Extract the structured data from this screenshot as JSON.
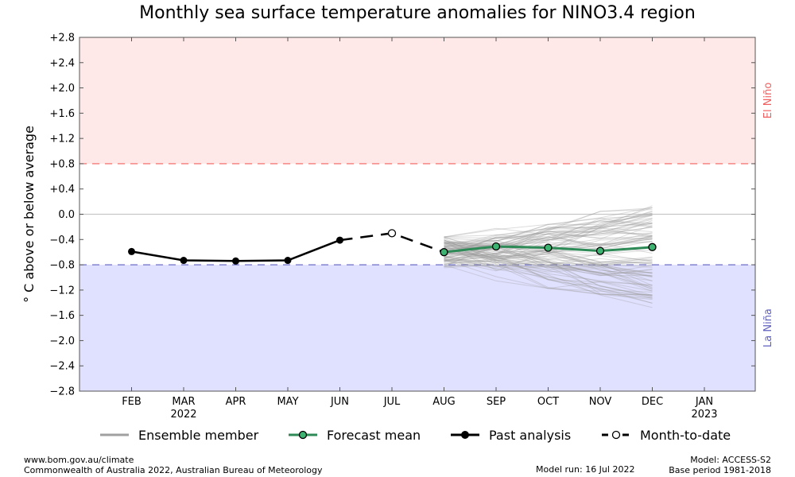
{
  "title": "Monthly sea surface temperature anomalies for NINO3.4 region",
  "footer": {
    "url": "www.bom.gov.au/climate",
    "copyright": "Commonwealth of Australia 2022, Australian Bureau of Meteorology",
    "model_run": "Model run: 16 Jul 2022",
    "model": "Model: ACCESS-S2",
    "base_period": "Base period 1981-2018"
  },
  "legend": [
    {
      "label": "Ensemble member",
      "color": "#a0a0a0"
    },
    {
      "label": "Forecast mean",
      "color": "#2e8b57"
    },
    {
      "label": "Past analysis",
      "color": "#000000"
    },
    {
      "label": "Month-to-date",
      "color": "#000000"
    }
  ],
  "chart_data": {
    "type": "line",
    "title": "Monthly sea surface temperature anomalies for NINO3.4 region",
    "ylabel": "° C above or below average",
    "ylim": [
      -2.8,
      2.8
    ],
    "y_ticks": [
      "+2.8",
      "+2.4",
      "+2.0",
      "+1.6",
      "+1.2",
      "+0.8",
      "+0.4",
      "0.0",
      "−0.4",
      "−0.8",
      "−1.2",
      "−1.6",
      "−2.0",
      "−2.4",
      "−2.8"
    ],
    "y_tick_values": [
      2.8,
      2.4,
      2.0,
      1.6,
      1.2,
      0.8,
      0.4,
      0.0,
      -0.4,
      -0.8,
      -1.2,
      -1.6,
      -2.0,
      -2.4,
      -2.8
    ],
    "categories": [
      "FEB",
      "MAR",
      "APR",
      "MAY",
      "JUN",
      "JUL",
      "AUG",
      "SEP",
      "OCT",
      "NOV",
      "DEC",
      "JAN"
    ],
    "year_labels": {
      "MAR": "2022",
      "JAN": "2023"
    },
    "thresholds": {
      "el_nino": {
        "label": "El Niño",
        "value": 0.8,
        "color": "#f06060",
        "fill": "#ffe8e8"
      },
      "la_nina": {
        "label": "La Niña",
        "value": -0.8,
        "color": "#6060c0",
        "fill": "#e0e0ff"
      }
    },
    "series": [
      {
        "name": "Past analysis",
        "color": "#000000",
        "x": [
          "FEB",
          "MAR",
          "APR",
          "MAY",
          "JUN"
        ],
        "values": [
          -0.59,
          -0.73,
          -0.74,
          -0.73,
          -0.41
        ]
      },
      {
        "name": "Month-to-date",
        "color": "#000000",
        "x": [
          "JUL"
        ],
        "values": [
          -0.3
        ]
      },
      {
        "name": "Forecast mean",
        "color": "#2e8b57",
        "x": [
          "AUG",
          "SEP",
          "OCT",
          "NOV",
          "DEC"
        ],
        "values": [
          -0.6,
          -0.51,
          -0.53,
          -0.58,
          -0.52
        ]
      }
    ],
    "ensemble": {
      "name": "Ensemble member",
      "x": [
        "AUG",
        "SEP",
        "OCT",
        "NOV",
        "DEC"
      ],
      "members": 99,
      "start_range": [
        -0.85,
        -0.35
      ],
      "end_range": [
        -1.5,
        0.15
      ]
    }
  }
}
